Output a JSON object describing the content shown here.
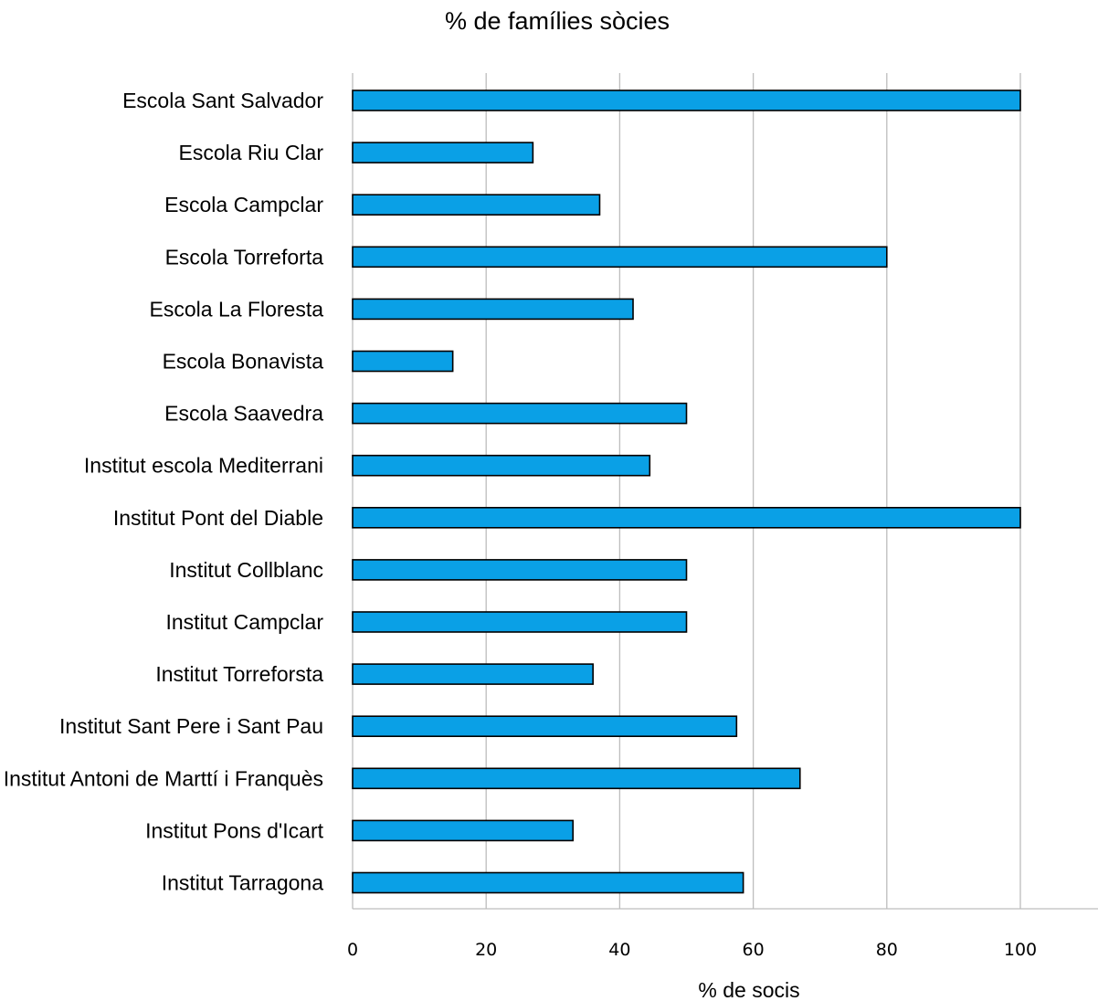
{
  "chart_data": {
    "type": "bar",
    "orientation": "horizontal",
    "title": "% de famílies sòcies",
    "xlabel": "% de socis",
    "ylabel": "",
    "xlim": [
      0,
      110
    ],
    "xticks": [
      "0",
      "20",
      "40",
      "60",
      "80",
      "100"
    ],
    "grid": "vertical",
    "bar_color": "#0aa0e6",
    "bar_outline": "#000000",
    "categories": [
      "Escola Sant Salvador",
      "Escola Riu Clar",
      "Escola Campclar",
      "Escola Torreforta",
      "Escola La Floresta",
      "Escola Bonavista",
      "Escola Saavedra",
      "Institut escola Mediterrani",
      "Institut Pont del Diable",
      "Institut Collblanc",
      "Institut Campclar",
      "Institut Torreforsta",
      "Institut Sant Pere i Sant Pau",
      "Institut Antoni de Marttí i Franquès",
      "Institut Pons d'Icart",
      "Institut Tarragona"
    ],
    "values": [
      100,
      27,
      37,
      80,
      42,
      15,
      50,
      44.5,
      100,
      50,
      50,
      36,
      57.5,
      67,
      33,
      58.5
    ]
  }
}
